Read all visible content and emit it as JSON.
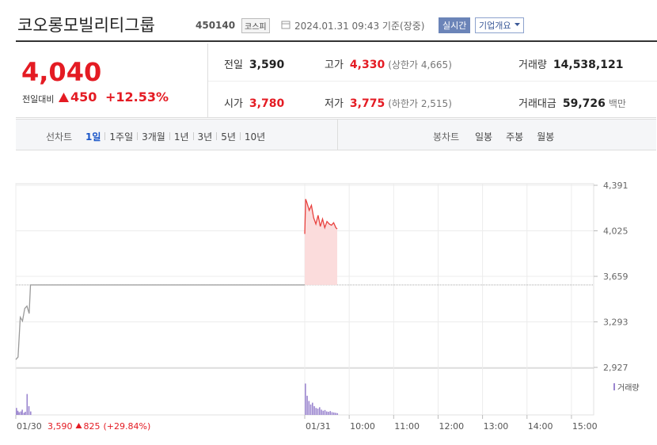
{
  "header": {
    "name": "코오롱모빌리티그룹",
    "code": "450140",
    "market": "코스피",
    "timestamp": "2024.01.31 09:43 기준(장중)",
    "realtime_button": "실시간",
    "company_button": "기업개요"
  },
  "quote": {
    "price": "4,040",
    "change_label": "전일대비",
    "change": "450",
    "change_pct": "+12.53%",
    "color": "#e41b23",
    "stats": [
      {
        "label": "전일",
        "value": "3,590"
      },
      {
        "label": "고가",
        "value": "4,330",
        "note": "(상한가 4,665)",
        "color": "#e41b23"
      },
      {
        "label": "거래량",
        "value": "14,538,121"
      },
      {
        "label": "시가",
        "value": "3,780",
        "color": "#e41b23"
      },
      {
        "label": "저가",
        "value": "3,775",
        "note": "(하한가 2,515)",
        "color": "#e41b23"
      },
      {
        "label": "거래대금",
        "value": "59,726",
        "note": "백만"
      }
    ]
  },
  "tabs": {
    "line_label": "선차트",
    "line_periods": [
      "1일",
      "1주일",
      "3개월",
      "1년",
      "3년",
      "5년",
      "10년"
    ],
    "selected": 0,
    "candle_label": "봉차트",
    "candle_periods": [
      "일봉",
      "주봉",
      "월봉"
    ]
  },
  "chart_footer": {
    "date": "01/30",
    "close": "3,590",
    "change": "825",
    "change_pct": "(+29.84%)"
  },
  "chart_data": {
    "type": "line",
    "xlim": [
      0,
      13
    ],
    "ylim": [
      2927,
      4391
    ],
    "yticks": [
      {
        "value": 2927,
        "label": "2,927"
      },
      {
        "value": 3293,
        "label": "3,293"
      },
      {
        "value": 3659,
        "label": "3,659"
      },
      {
        "value": 4025,
        "label": "4,025"
      },
      {
        "value": 4391,
        "label": "4,391"
      }
    ],
    "xticks": [
      {
        "value": 0,
        "label": "01/30"
      },
      {
        "value": 6.5,
        "label": "01/31"
      },
      {
        "value": 7.5,
        "label": "10:00"
      },
      {
        "value": 8.5,
        "label": "11:00"
      },
      {
        "value": 9.5,
        "label": "12:00"
      },
      {
        "value": 10.5,
        "label": "13:00"
      },
      {
        "value": 11.5,
        "label": "14:00"
      },
      {
        "value": 12.5,
        "label": "15:00"
      }
    ],
    "baseline": 3590,
    "series": [
      {
        "color": "#9a9a9a",
        "x": [
          0,
          0.05,
          0.1,
          0.15,
          0.2,
          0.25,
          0.3,
          0.33,
          6.5
        ],
        "values": [
          2990,
          3010,
          3330,
          3300,
          3400,
          3420,
          3360,
          3590,
          3590
        ]
      },
      {
        "color": "#e8413e",
        "fill": "#fbdcdc",
        "x": [
          6.5,
          6.52,
          6.55,
          6.6,
          6.65,
          6.7,
          6.75,
          6.8,
          6.85,
          6.9,
          6.95,
          7.0,
          7.05,
          7.1,
          7.15,
          7.2,
          7.23
        ],
        "values": [
          4000,
          4280,
          4250,
          4190,
          4230,
          4130,
          4080,
          4150,
          4060,
          4120,
          4050,
          4100,
          4080,
          4070,
          4090,
          4050,
          4040
        ]
      }
    ],
    "volume": {
      "name": "거래량",
      "color": "#9b86cf",
      "ylim": [
        0,
        100
      ],
      "x": [
        0,
        0.03,
        0.06,
        0.1,
        0.13,
        0.17,
        0.2,
        0.24,
        0.28,
        0.32,
        6.5,
        6.54,
        6.58,
        6.62,
        6.66,
        6.7,
        6.74,
        6.78,
        6.82,
        6.86,
        6.9,
        6.94,
        6.98,
        7.02,
        7.06,
        7.1,
        7.14,
        7.18,
        7.22
      ],
      "values": [
        20,
        12,
        8,
        10,
        15,
        6,
        9,
        60,
        25,
        10,
        90,
        55,
        40,
        30,
        35,
        25,
        20,
        18,
        22,
        15,
        12,
        14,
        10,
        9,
        11,
        8,
        7,
        6,
        5
      ]
    }
  }
}
